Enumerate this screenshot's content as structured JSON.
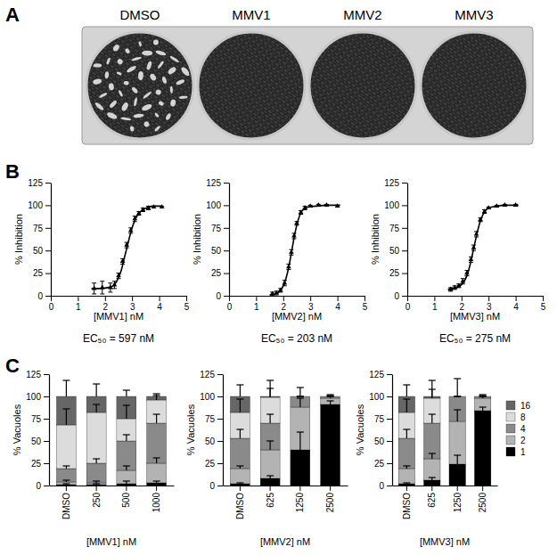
{
  "chart_data": [
    {
      "type": "image",
      "panel": "A",
      "categories": [
        "DMSO",
        "MMV1",
        "MMV2",
        "MMV3"
      ]
    },
    {
      "type": "line",
      "panel": "B",
      "x_label": "[MMV1] nM",
      "y_label": "% Inhibition",
      "annotation": "EC₅₀ = 597 nM",
      "xlim": [
        0,
        5
      ],
      "xticks": [
        0,
        1,
        2,
        3,
        4,
        5
      ],
      "ylim": [
        0,
        125
      ],
      "yticks": [
        0,
        25,
        50,
        75,
        100,
        125
      ],
      "series": [
        {
          "type": "scatter",
          "marker": "triangle",
          "color": "#000000",
          "x": [
            1.6,
            1.9,
            2.2,
            2.35,
            2.5,
            2.65,
            2.8,
            2.95,
            3.1,
            3.25,
            3.4,
            3.6,
            3.8,
            4.1
          ],
          "values": [
            8,
            9,
            9,
            12,
            22,
            38,
            56,
            72,
            85,
            91,
            95,
            97,
            98,
            98
          ],
          "errors": [
            6,
            7,
            5,
            4,
            3,
            3,
            3,
            3,
            3,
            2,
            2,
            2,
            1,
            1
          ]
        },
        {
          "type": "line",
          "line_style": "solid",
          "color": "#000000",
          "x": [
            1.5,
            1.8,
            2.1,
            2.3,
            2.5,
            2.6,
            2.7,
            2.8,
            2.9,
            3.0,
            3.1,
            3.2,
            3.4,
            3.6,
            3.8,
            4.1
          ],
          "values": [
            8,
            8,
            9,
            11,
            20,
            28,
            40,
            52,
            64,
            75,
            83,
            89,
            95,
            98,
            99,
            99
          ]
        }
      ]
    },
    {
      "type": "line",
      "x_label": "[MMV2] nM",
      "y_label": "% Inhibition",
      "annotation": "EC₅₀ = 203 nM",
      "xlim": [
        0,
        5
      ],
      "xticks": [
        0,
        1,
        2,
        3,
        4,
        5
      ],
      "ylim": [
        0,
        125
      ],
      "yticks": [
        0,
        25,
        50,
        75,
        100,
        125
      ],
      "series": [
        {
          "type": "scatter",
          "marker": "triangle",
          "color": "#000000",
          "x": [
            1.6,
            1.75,
            1.9,
            2.05,
            2.2,
            2.3,
            2.4,
            2.5,
            2.65,
            2.8,
            3.0,
            3.3,
            3.6,
            4.0
          ],
          "values": [
            2,
            3,
            6,
            14,
            32,
            48,
            66,
            80,
            92,
            97,
            99,
            100,
            100,
            99
          ],
          "errors": [
            2,
            2,
            2,
            3,
            3,
            3,
            3,
            2,
            2,
            2,
            1,
            1,
            1,
            1
          ]
        },
        {
          "type": "line",
          "line_style": "solid",
          "color": "#000000",
          "x": [
            1.5,
            1.7,
            1.9,
            2.0,
            2.1,
            2.2,
            2.3,
            2.4,
            2.5,
            2.6,
            2.7,
            2.9,
            3.2,
            3.6,
            4.1
          ],
          "values": [
            1,
            2,
            6,
            11,
            19,
            31,
            47,
            64,
            78,
            88,
            94,
            98,
            99,
            100,
            100
          ]
        }
      ]
    },
    {
      "type": "line",
      "x_label": "[MMV3] nM",
      "y_label": "% Inhibition",
      "annotation": "EC₅₀ = 275 nM",
      "xlim": [
        0,
        5
      ],
      "xticks": [
        0,
        1,
        2,
        3,
        4,
        5
      ],
      "ylim": [
        0,
        125
      ],
      "yticks": [
        0,
        25,
        50,
        75,
        100,
        125
      ],
      "series": [
        {
          "type": "scatter",
          "marker": "triangle",
          "color": "#000000",
          "x": [
            1.6,
            1.75,
            1.9,
            2.05,
            2.2,
            2.35,
            2.45,
            2.55,
            2.7,
            2.85,
            3.0,
            3.3,
            3.6,
            4.0
          ],
          "values": [
            7,
            9,
            11,
            16,
            25,
            40,
            53,
            68,
            84,
            93,
            97,
            99,
            100,
            100
          ],
          "errors": [
            2,
            2,
            2,
            3,
            3,
            3,
            3,
            3,
            2,
            2,
            1,
            1,
            1,
            1
          ]
        },
        {
          "type": "line",
          "line_style": "solid",
          "color": "#000000",
          "x": [
            1.5,
            1.7,
            1.9,
            2.1,
            2.2,
            2.3,
            2.4,
            2.5,
            2.6,
            2.7,
            2.8,
            3.0,
            3.3,
            3.6,
            4.1
          ],
          "values": [
            7,
            8,
            10,
            16,
            22,
            32,
            45,
            59,
            72,
            83,
            90,
            97,
            99,
            100,
            100
          ]
        }
      ]
    },
    {
      "type": "bar",
      "stacked": true,
      "panel": "C",
      "x_label": "[MMV1] nM",
      "y_label": "% Vacuoles",
      "categories": [
        "DMSO",
        "250",
        "500",
        "1000"
      ],
      "ylim": [
        0,
        125
      ],
      "yticks": [
        0,
        25,
        50,
        75,
        100,
        125
      ],
      "series": [
        {
          "color": "#000000",
          "values": [
            1,
            1,
            2,
            3
          ],
          "errors": [
            1,
            1,
            3,
            2
          ]
        },
        {
          "color": "#b3b3b3",
          "values": [
            3,
            2,
            15,
            22
          ],
          "errors": [
            2,
            2,
            5,
            6
          ]
        },
        {
          "color": "#8a8a8a",
          "values": [
            15,
            22,
            33,
            45
          ],
          "errors": [
            3,
            5,
            7,
            10
          ]
        },
        {
          "color": "#dcdcdc",
          "values": [
            49,
            57,
            25,
            26
          ],
          "errors": [
            18,
            9,
            15,
            5
          ]
        },
        {
          "color": "#666666",
          "values": [
            32,
            18,
            25,
            4
          ],
          "errors": [
            18,
            14,
            7,
            3
          ]
        }
      ]
    },
    {
      "type": "bar",
      "stacked": true,
      "x_label": "[MMV2] nM",
      "y_label": "% Vacuoles",
      "categories": [
        "DMSO",
        "625",
        "1250",
        "2500"
      ],
      "ylim": [
        0,
        125
      ],
      "yticks": [
        0,
        25,
        50,
        75,
        100,
        125
      ],
      "series": [
        {
          "color": "#000000",
          "values": [
            2,
            8,
            40,
            91
          ],
          "errors": [
            1,
            3,
            20,
            4
          ]
        },
        {
          "color": "#b3b3b3",
          "values": [
            17,
            32,
            48,
            7
          ],
          "errors": [
            3,
            10,
            10,
            3
          ]
        },
        {
          "color": "#8a8a8a",
          "values": [
            34,
            30,
            12,
            2
          ],
          "errors": [
            10,
            10,
            10,
            2
          ]
        },
        {
          "color": "#dcdcdc",
          "values": [
            29,
            29,
            0,
            0
          ],
          "errors": [
            15,
            10,
            0,
            0
          ]
        },
        {
          "color": "#666666",
          "values": [
            18,
            1,
            0,
            0
          ],
          "errors": [
            13,
            18,
            0,
            0
          ]
        }
      ]
    },
    {
      "type": "bar",
      "stacked": true,
      "legend": "right",
      "x_label": "[MMV3] nM",
      "y_label": "% Vacuoles",
      "categories": [
        "DMSO",
        "625",
        "1250",
        "2500"
      ],
      "ylim": [
        0,
        125
      ],
      "yticks": [
        0,
        25,
        50,
        75,
        100,
        125
      ],
      "series": [
        {
          "name": "1",
          "color": "#000000",
          "values": [
            2,
            6,
            24,
            84
          ],
          "errors": [
            1,
            3,
            10,
            4
          ]
        },
        {
          "name": "2",
          "color": "#b3b3b3",
          "values": [
            17,
            24,
            48,
            14
          ],
          "errors": [
            3,
            6,
            13,
            3
          ]
        },
        {
          "name": "4",
          "color": "#8a8a8a",
          "values": [
            34,
            40,
            28,
            2
          ],
          "errors": [
            10,
            10,
            20,
            2
          ]
        },
        {
          "name": "8",
          "color": "#dcdcdc",
          "values": [
            29,
            28,
            0,
            0
          ],
          "errors": [
            15,
            10,
            0,
            0
          ]
        },
        {
          "name": "16",
          "color": "#666666",
          "values": [
            18,
            2,
            0,
            0
          ],
          "errors": [
            13,
            18,
            0,
            0
          ]
        }
      ]
    }
  ]
}
